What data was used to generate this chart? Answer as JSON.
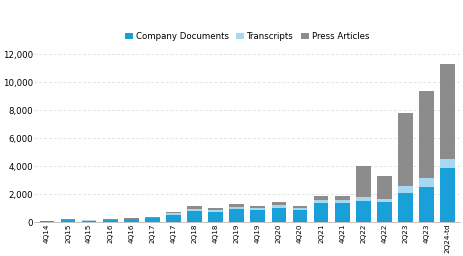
{
  "categories": [
    "4Q14",
    "2Q15",
    "4Q15",
    "2Q16",
    "4Q16",
    "2Q17",
    "4Q17",
    "2Q18",
    "4Q18",
    "2Q19",
    "4Q19",
    "2Q20",
    "4Q20",
    "2Q21",
    "4Q21",
    "2Q22",
    "4Q22",
    "2Q23",
    "4Q23",
    "2Q24-td"
  ],
  "company_documents": [
    80,
    130,
    110,
    140,
    220,
    280,
    550,
    800,
    750,
    950,
    850,
    1050,
    900,
    1350,
    1350,
    1550,
    1450,
    2100,
    2500,
    3900
  ],
  "transcripts": [
    15,
    25,
    15,
    25,
    35,
    45,
    90,
    130,
    110,
    150,
    140,
    170,
    130,
    210,
    210,
    260,
    240,
    480,
    680,
    630
  ],
  "press_articles": [
    20,
    40,
    20,
    40,
    50,
    60,
    120,
    200,
    170,
    200,
    170,
    200,
    150,
    300,
    350,
    2200,
    1600,
    5200,
    6200,
    6800
  ],
  "color_company": "#1aa0d8",
  "color_transcripts": "#a8d8f0",
  "color_press": "#8c8c8c",
  "ylim": [
    0,
    12000
  ],
  "yticks": [
    0,
    2000,
    4000,
    6000,
    8000,
    10000,
    12000
  ],
  "legend_labels": [
    "Company Documents",
    "Transcripts",
    "Press Articles"
  ],
  "background_color": "#ffffff",
  "grid_color": "#d8d8d8"
}
